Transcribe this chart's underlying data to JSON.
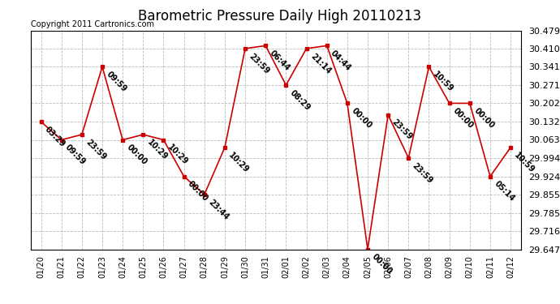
{
  "title": "Barometric Pressure Daily High 20110213",
  "copyright": "Copyright 2011 Cartronics.com",
  "x_labels": [
    "01/20",
    "01/21",
    "01/22",
    "01/23",
    "01/24",
    "01/25",
    "01/26",
    "01/27",
    "01/28",
    "01/29",
    "01/30",
    "01/31",
    "02/01",
    "02/02",
    "02/03",
    "02/04",
    "02/05",
    "02/06",
    "02/07",
    "02/08",
    "02/09",
    "02/10",
    "02/11",
    "02/12"
  ],
  "y_values": [
    30.132,
    30.063,
    30.083,
    30.341,
    30.063,
    30.083,
    30.063,
    29.924,
    29.855,
    30.034,
    30.41,
    30.421,
    30.271,
    30.41,
    30.421,
    30.202,
    29.647,
    30.158,
    29.994,
    30.341,
    30.202,
    30.202,
    29.924,
    30.034
  ],
  "annotations": [
    "03:29",
    "09:59",
    "23:59",
    "09:59",
    "00:00",
    "10:29",
    "10:29",
    "00:00",
    "23:44",
    "10:29",
    "23:59",
    "06:44",
    "08:29",
    "21:14",
    "04:44",
    "00:00",
    "00:00",
    "23:59",
    "23:59",
    "10:59",
    "00:00",
    "00:00",
    "05:14",
    "10:59"
  ],
  "ylim_min": 29.647,
  "ylim_max": 30.479,
  "yticks": [
    30.479,
    30.41,
    30.341,
    30.271,
    30.202,
    30.132,
    30.063,
    29.994,
    29.924,
    29.855,
    29.785,
    29.716,
    29.647
  ],
  "line_color": "#cc0000",
  "marker_color": "#cc0000",
  "bg_color": "#ffffff",
  "grid_color": "#aaaaaa",
  "title_fontsize": 12,
  "annotation_fontsize": 7,
  "xlabel_fontsize": 7,
  "ylabel_fontsize": 8,
  "copyright_fontsize": 7
}
